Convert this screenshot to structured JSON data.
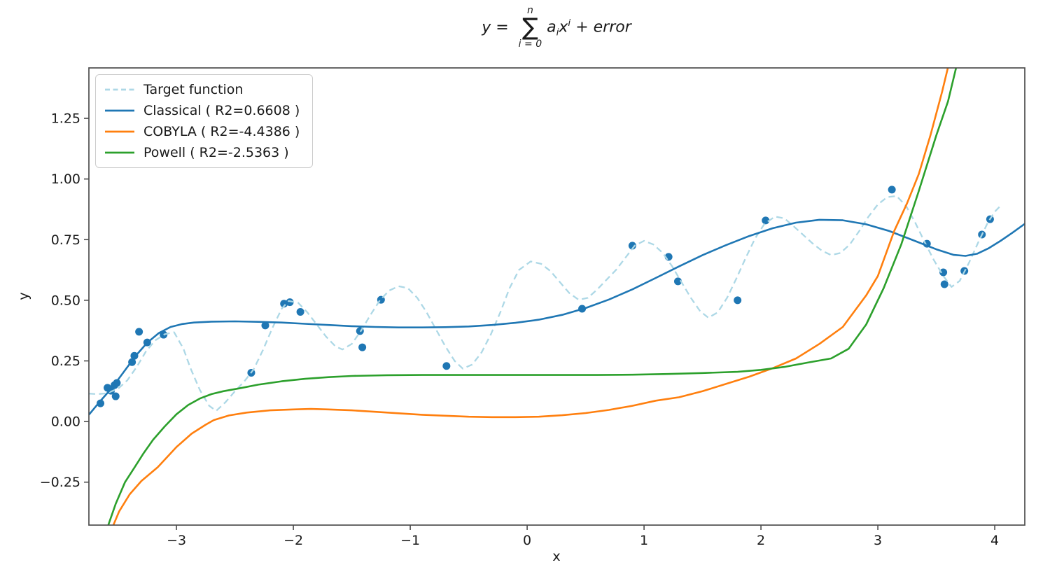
{
  "title": {
    "lhs": "y = ",
    "sum_upper": "n",
    "sigma": "∑",
    "sum_lower": "i = 0",
    "coef": "a",
    "coef_sub": "i",
    "var": "x",
    "var_sup": "i",
    "tail": " + error"
  },
  "colors": {
    "spine": "#4d4d4d",
    "text": "#1a1a1a",
    "legend_border": "#cccccc",
    "target": "#add8e6",
    "classical": "#1f77b4",
    "cobyla": "#ff7f0e",
    "powell": "#2ca02c",
    "scatter": "#1f77b4"
  },
  "chart_data": {
    "type": "line+scatter",
    "xlabel": "x",
    "ylabel": "y",
    "xlim": [
      -3.749,
      4.257
    ],
    "ylim": [
      -0.427,
      1.458
    ],
    "grid": false,
    "legend_position": "upper left",
    "x_ticks": [
      {
        "v": -3,
        "label": "−3"
      },
      {
        "v": -2,
        "label": "−2"
      },
      {
        "v": -1,
        "label": "−1"
      },
      {
        "v": 0,
        "label": "0"
      },
      {
        "v": 1,
        "label": "1"
      },
      {
        "v": 2,
        "label": "2"
      },
      {
        "v": 3,
        "label": "3"
      },
      {
        "v": 4,
        "label": "4"
      }
    ],
    "y_ticks": [
      {
        "v": -0.25,
        "label": "−0.25"
      },
      {
        "v": 0.0,
        "label": "0.00"
      },
      {
        "v": 0.25,
        "label": "0.25"
      },
      {
        "v": 0.5,
        "label": "0.50"
      },
      {
        "v": 0.75,
        "label": "0.75"
      },
      {
        "v": 1.0,
        "label": "1.00"
      },
      {
        "v": 1.25,
        "label": "1.25"
      }
    ],
    "scatter": {
      "name": "samples",
      "color": "#1f77b4",
      "radius": 5.5,
      "points": [
        [
          -3.65,
          0.075
        ],
        [
          -3.59,
          0.139
        ],
        [
          -3.56,
          0.127
        ],
        [
          -3.53,
          0.15
        ],
        [
          -3.52,
          0.104
        ],
        [
          -3.51,
          0.159
        ],
        [
          -3.38,
          0.245
        ],
        [
          -3.36,
          0.271
        ],
        [
          -3.32,
          0.37
        ],
        [
          -3.25,
          0.326
        ],
        [
          -3.11,
          0.358
        ],
        [
          -2.36,
          0.201
        ],
        [
          -2.24,
          0.396
        ],
        [
          -2.08,
          0.486
        ],
        [
          -2.03,
          0.492
        ],
        [
          -1.94,
          0.452
        ],
        [
          -1.43,
          0.373
        ],
        [
          -1.41,
          0.306
        ],
        [
          -1.25,
          0.502
        ],
        [
          -0.69,
          0.229
        ],
        [
          0.47,
          0.465
        ],
        [
          0.9,
          0.725
        ],
        [
          1.21,
          0.679
        ],
        [
          1.29,
          0.578
        ],
        [
          1.8,
          0.5
        ],
        [
          2.04,
          0.829
        ],
        [
          3.12,
          0.956
        ],
        [
          3.42,
          0.733
        ],
        [
          3.56,
          0.615
        ],
        [
          3.57,
          0.566
        ],
        [
          3.74,
          0.621
        ],
        [
          3.89,
          0.771
        ],
        [
          3.96,
          0.834
        ]
      ]
    },
    "series": [
      {
        "name": "Target function",
        "color": "#add8e6",
        "dash": "9,5.5",
        "width": 2.3,
        "points": [
          [
            -3.749,
            0.115
          ],
          [
            -3.68,
            0.113
          ],
          [
            -3.6,
            0.116
          ],
          [
            -3.5,
            0.135
          ],
          [
            -3.42,
            0.17
          ],
          [
            -3.34,
            0.225
          ],
          [
            -3.26,
            0.29
          ],
          [
            -3.18,
            0.335
          ],
          [
            -3.1,
            0.36
          ],
          [
            -3.02,
            0.368
          ],
          [
            -2.94,
            0.3
          ],
          [
            -2.88,
            0.22
          ],
          [
            -2.8,
            0.13
          ],
          [
            -2.72,
            0.065
          ],
          [
            -2.66,
            0.044
          ],
          [
            -2.58,
            0.08
          ],
          [
            -2.5,
            0.125
          ],
          [
            -2.42,
            0.165
          ],
          [
            -2.34,
            0.215
          ],
          [
            -2.26,
            0.295
          ],
          [
            -2.18,
            0.385
          ],
          [
            -2.1,
            0.465
          ],
          [
            -2.04,
            0.497
          ],
          [
            -1.96,
            0.49
          ],
          [
            -1.88,
            0.45
          ],
          [
            -1.8,
            0.4
          ],
          [
            -1.72,
            0.35
          ],
          [
            -1.64,
            0.31
          ],
          [
            -1.58,
            0.297
          ],
          [
            -1.5,
            0.32
          ],
          [
            -1.42,
            0.375
          ],
          [
            -1.34,
            0.44
          ],
          [
            -1.26,
            0.5
          ],
          [
            -1.18,
            0.54
          ],
          [
            -1.1,
            0.558
          ],
          [
            -1.02,
            0.55
          ],
          [
            -0.94,
            0.51
          ],
          [
            -0.86,
            0.45
          ],
          [
            -0.78,
            0.38
          ],
          [
            -0.7,
            0.31
          ],
          [
            -0.62,
            0.25
          ],
          [
            -0.55,
            0.218
          ],
          [
            -0.47,
            0.235
          ],
          [
            -0.39,
            0.285
          ],
          [
            -0.31,
            0.36
          ],
          [
            -0.23,
            0.45
          ],
          [
            -0.15,
            0.55
          ],
          [
            -0.07,
            0.625
          ],
          [
            0.03,
            0.66
          ],
          [
            0.12,
            0.65
          ],
          [
            0.2,
            0.62
          ],
          [
            0.28,
            0.575
          ],
          [
            0.36,
            0.53
          ],
          [
            0.44,
            0.502
          ],
          [
            0.52,
            0.51
          ],
          [
            0.6,
            0.545
          ],
          [
            0.68,
            0.585
          ],
          [
            0.76,
            0.625
          ],
          [
            0.84,
            0.675
          ],
          [
            0.92,
            0.725
          ],
          [
            1.0,
            0.745
          ],
          [
            1.08,
            0.73
          ],
          [
            1.16,
            0.695
          ],
          [
            1.24,
            0.64
          ],
          [
            1.32,
            0.575
          ],
          [
            1.4,
            0.51
          ],
          [
            1.48,
            0.455
          ],
          [
            1.55,
            0.428
          ],
          [
            1.63,
            0.45
          ],
          [
            1.71,
            0.51
          ],
          [
            1.79,
            0.59
          ],
          [
            1.87,
            0.675
          ],
          [
            1.95,
            0.755
          ],
          [
            2.03,
            0.815
          ],
          [
            2.12,
            0.845
          ],
          [
            2.2,
            0.838
          ],
          [
            2.28,
            0.805
          ],
          [
            2.36,
            0.77
          ],
          [
            2.44,
            0.735
          ],
          [
            2.52,
            0.705
          ],
          [
            2.6,
            0.686
          ],
          [
            2.68,
            0.695
          ],
          [
            2.76,
            0.73
          ],
          [
            2.84,
            0.785
          ],
          [
            2.92,
            0.845
          ],
          [
            3.0,
            0.895
          ],
          [
            3.08,
            0.925
          ],
          [
            3.16,
            0.93
          ],
          [
            3.24,
            0.89
          ],
          [
            3.32,
            0.82
          ],
          [
            3.4,
            0.74
          ],
          [
            3.48,
            0.665
          ],
          [
            3.56,
            0.6
          ],
          [
            3.63,
            0.555
          ],
          [
            3.7,
            0.58
          ],
          [
            3.78,
            0.655
          ],
          [
            3.86,
            0.74
          ],
          [
            3.94,
            0.82
          ],
          [
            4.0,
            0.865
          ],
          [
            4.04,
            0.885
          ]
        ]
      },
      {
        "name": "Classical ( R2=0.6608 )",
        "color": "#1f77b4",
        "dash": null,
        "width": 2.6,
        "points": [
          [
            -3.749,
            0.028
          ],
          [
            -3.65,
            0.085
          ],
          [
            -3.55,
            0.14
          ],
          [
            -3.45,
            0.205
          ],
          [
            -3.35,
            0.27
          ],
          [
            -3.25,
            0.325
          ],
          [
            -3.15,
            0.365
          ],
          [
            -3.05,
            0.39
          ],
          [
            -2.95,
            0.402
          ],
          [
            -2.85,
            0.408
          ],
          [
            -2.7,
            0.412
          ],
          [
            -2.5,
            0.413
          ],
          [
            -2.3,
            0.411
          ],
          [
            -2.1,
            0.408
          ],
          [
            -1.9,
            0.403
          ],
          [
            -1.7,
            0.398
          ],
          [
            -1.5,
            0.393
          ],
          [
            -1.3,
            0.39
          ],
          [
            -1.1,
            0.388
          ],
          [
            -0.9,
            0.388
          ],
          [
            -0.7,
            0.389
          ],
          [
            -0.5,
            0.392
          ],
          [
            -0.3,
            0.398
          ],
          [
            -0.1,
            0.407
          ],
          [
            0.1,
            0.42
          ],
          [
            0.3,
            0.44
          ],
          [
            0.5,
            0.468
          ],
          [
            0.7,
            0.503
          ],
          [
            0.9,
            0.545
          ],
          [
            1.1,
            0.592
          ],
          [
            1.3,
            0.64
          ],
          [
            1.5,
            0.686
          ],
          [
            1.7,
            0.727
          ],
          [
            1.9,
            0.765
          ],
          [
            2.1,
            0.797
          ],
          [
            2.3,
            0.82
          ],
          [
            2.5,
            0.832
          ],
          [
            2.7,
            0.83
          ],
          [
            2.9,
            0.813
          ],
          [
            3.1,
            0.785
          ],
          [
            3.3,
            0.748
          ],
          [
            3.5,
            0.71
          ],
          [
            3.65,
            0.687
          ],
          [
            3.75,
            0.683
          ],
          [
            3.85,
            0.692
          ],
          [
            3.95,
            0.715
          ],
          [
            4.05,
            0.745
          ],
          [
            4.15,
            0.778
          ],
          [
            4.257,
            0.815
          ]
        ]
      },
      {
        "name": "COBYLA ( R2=-4.4386 )",
        "color": "#ff7f0e",
        "dash": null,
        "width": 2.6,
        "points": [
          [
            -3.56,
            -0.45
          ],
          [
            -3.49,
            -0.37
          ],
          [
            -3.4,
            -0.3
          ],
          [
            -3.3,
            -0.245
          ],
          [
            -3.16,
            -0.188
          ],
          [
            -3.0,
            -0.105
          ],
          [
            -2.87,
            -0.05
          ],
          [
            -2.75,
            -0.013
          ],
          [
            -2.68,
            0.006
          ],
          [
            -2.55,
            0.025
          ],
          [
            -2.4,
            0.037
          ],
          [
            -2.2,
            0.046
          ],
          [
            -2.0,
            0.05
          ],
          [
            -1.85,
            0.052
          ],
          [
            -1.7,
            0.05
          ],
          [
            -1.5,
            0.046
          ],
          [
            -1.3,
            0.04
          ],
          [
            -1.1,
            0.034
          ],
          [
            -0.9,
            0.028
          ],
          [
            -0.7,
            0.024
          ],
          [
            -0.5,
            0.02
          ],
          [
            -0.3,
            0.018
          ],
          [
            -0.1,
            0.018
          ],
          [
            0.1,
            0.02
          ],
          [
            0.3,
            0.026
          ],
          [
            0.5,
            0.035
          ],
          [
            0.7,
            0.048
          ],
          [
            0.9,
            0.065
          ],
          [
            1.1,
            0.086
          ],
          [
            1.3,
            0.1
          ],
          [
            1.5,
            0.125
          ],
          [
            1.7,
            0.155
          ],
          [
            1.9,
            0.185
          ],
          [
            2.1,
            0.22
          ],
          [
            2.3,
            0.26
          ],
          [
            2.5,
            0.32
          ],
          [
            2.7,
            0.39
          ],
          [
            2.9,
            0.52
          ],
          [
            3.0,
            0.6
          ],
          [
            3.14,
            0.786
          ],
          [
            3.25,
            0.9
          ],
          [
            3.35,
            1.02
          ],
          [
            3.45,
            1.18
          ],
          [
            3.55,
            1.36
          ],
          [
            3.62,
            1.5
          ]
        ]
      },
      {
        "name": "Powell ( R2=-2.5363 )",
        "color": "#2ca02c",
        "dash": null,
        "width": 2.6,
        "points": [
          [
            -3.6,
            -0.45
          ],
          [
            -3.52,
            -0.34
          ],
          [
            -3.44,
            -0.25
          ],
          [
            -3.36,
            -0.19
          ],
          [
            -3.28,
            -0.13
          ],
          [
            -3.2,
            -0.075
          ],
          [
            -3.1,
            -0.02
          ],
          [
            -3.0,
            0.03
          ],
          [
            -2.9,
            0.068
          ],
          [
            -2.8,
            0.095
          ],
          [
            -2.7,
            0.113
          ],
          [
            -2.6,
            0.125
          ],
          [
            -2.45,
            0.138
          ],
          [
            -2.3,
            0.152
          ],
          [
            -2.1,
            0.166
          ],
          [
            -1.9,
            0.176
          ],
          [
            -1.7,
            0.183
          ],
          [
            -1.5,
            0.188
          ],
          [
            -1.2,
            0.191
          ],
          [
            -0.9,
            0.192
          ],
          [
            -0.6,
            0.192
          ],
          [
            -0.3,
            0.192
          ],
          [
            0.0,
            0.192
          ],
          [
            0.3,
            0.192
          ],
          [
            0.6,
            0.192
          ],
          [
            0.9,
            0.193
          ],
          [
            1.2,
            0.196
          ],
          [
            1.5,
            0.2
          ],
          [
            1.8,
            0.205
          ],
          [
            2.0,
            0.213
          ],
          [
            2.2,
            0.225
          ],
          [
            2.4,
            0.243
          ],
          [
            2.6,
            0.26
          ],
          [
            2.75,
            0.3
          ],
          [
            2.9,
            0.4
          ],
          [
            3.05,
            0.55
          ],
          [
            3.2,
            0.73
          ],
          [
            3.35,
            0.95
          ],
          [
            3.5,
            1.18
          ],
          [
            3.6,
            1.32
          ],
          [
            3.69,
            1.5
          ]
        ]
      }
    ]
  }
}
